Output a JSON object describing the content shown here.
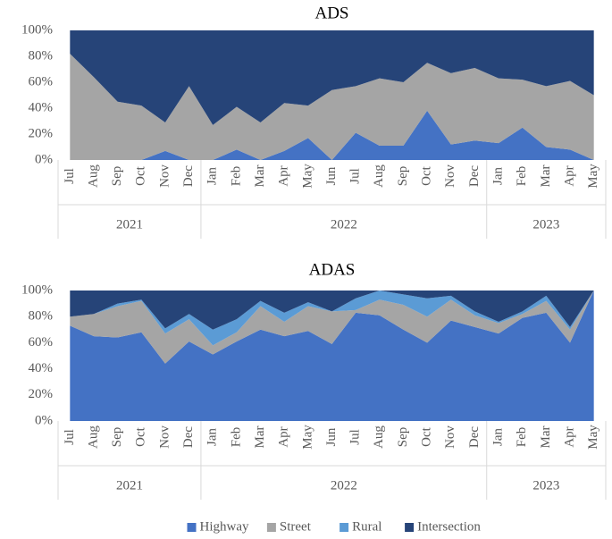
{
  "chart_data": [
    {
      "type": "stacked-area",
      "title": "ADS",
      "categories": [
        "Jul",
        "Aug",
        "Sep",
        "Oct",
        "Nov",
        "Dec",
        "Jan",
        "Feb",
        "Mar",
        "Apr",
        "May",
        "Jun",
        "Jul",
        "Aug",
        "Sep",
        "Oct",
        "Nov",
        "Dec",
        "Jan",
        "Feb",
        "Mar",
        "Apr",
        "May"
      ],
      "years": [
        "2021",
        "2021",
        "2021",
        "2021",
        "2021",
        "2021",
        "2022",
        "2022",
        "2022",
        "2022",
        "2022",
        "2022",
        "2022",
        "2022",
        "2022",
        "2022",
        "2022",
        "2022",
        "2023",
        "2023",
        "2023",
        "2023",
        "2023"
      ],
      "ylim": [
        0,
        100
      ],
      "yticks": [
        {
          "value": 0,
          "label": "0%"
        },
        {
          "value": 20,
          "label": "20%"
        },
        {
          "value": 40,
          "label": "40%"
        },
        {
          "value": 60,
          "label": "60%"
        },
        {
          "value": 80,
          "label": "80%"
        },
        {
          "value": 100,
          "label": "100%"
        }
      ],
      "series": [
        {
          "color": "#4472c4",
          "values": [
            0,
            0,
            0,
            0,
            7,
            0,
            0,
            8,
            0,
            7,
            17,
            0,
            21,
            11,
            11,
            38,
            12,
            15,
            13,
            25,
            10,
            8,
            0
          ]
        },
        {
          "color": "#a5a5a5",
          "values": [
            82,
            64,
            45,
            42,
            22,
            57,
            27,
            33,
            29,
            37,
            25,
            54,
            36,
            52,
            49,
            37,
            55,
            56,
            50,
            37,
            47,
            53,
            50
          ]
        },
        {
          "color": "#5b9bd5",
          "values": [
            0,
            0,
            0,
            0,
            0,
            0,
            0,
            0,
            0,
            0,
            0,
            0,
            0,
            0,
            0,
            0,
            0,
            0,
            0,
            0,
            0,
            0,
            0
          ]
        },
        {
          "color": "#264478",
          "values": [
            18,
            36,
            55,
            58,
            71,
            43,
            73,
            59,
            71,
            56,
            58,
            46,
            43,
            37,
            40,
            25,
            33,
            29,
            37,
            38,
            43,
            39,
            50
          ]
        }
      ]
    },
    {
      "type": "stacked-area",
      "title": "ADAS",
      "categories": [
        "Jul",
        "Aug",
        "Sep",
        "Oct",
        "Nov",
        "Dec",
        "Jan",
        "Feb",
        "Mar",
        "Apr",
        "May",
        "Jun",
        "Jul",
        "Aug",
        "Sep",
        "Oct",
        "Nov",
        "Dec",
        "Jan",
        "Feb",
        "Mar",
        "Apr",
        "May"
      ],
      "years": [
        "2021",
        "2021",
        "2021",
        "2021",
        "2021",
        "2021",
        "2022",
        "2022",
        "2022",
        "2022",
        "2022",
        "2022",
        "2022",
        "2022",
        "2022",
        "2022",
        "2022",
        "2022",
        "2023",
        "2023",
        "2023",
        "2023",
        "2023"
      ],
      "ylim": [
        0,
        100
      ],
      "yticks": [
        {
          "value": 0,
          "label": "0%"
        },
        {
          "value": 20,
          "label": "20%"
        },
        {
          "value": 40,
          "label": "40%"
        },
        {
          "value": 60,
          "label": "60%"
        },
        {
          "value": 80,
          "label": "80%"
        },
        {
          "value": 100,
          "label": "100%"
        }
      ],
      "legend": "bottom",
      "series": [
        {
          "name": "Highway",
          "color": "#4472c4",
          "values": [
            73,
            65,
            64,
            68,
            44,
            61,
            51,
            61,
            70,
            65,
            69,
            59,
            83,
            81,
            70,
            60,
            77,
            72,
            67,
            79,
            83,
            60,
            100
          ]
        },
        {
          "name": "Street",
          "color": "#a5a5a5",
          "values": [
            7,
            17,
            24,
            24,
            23,
            17,
            7,
            7,
            18,
            11,
            19,
            25,
            2,
            12,
            19,
            20,
            16,
            9,
            8,
            3,
            9,
            10,
            0
          ]
        },
        {
          "name": "Rural",
          "color": "#5b9bd5",
          "values": [
            0,
            0,
            2,
            1,
            4,
            4,
            12,
            10,
            4,
            7,
            3,
            0,
            9,
            7,
            8,
            14,
            3,
            3,
            1,
            2,
            4,
            2,
            0
          ]
        },
        {
          "name": "Intersection",
          "color": "#264478",
          "values": [
            20,
            18,
            10,
            7,
            29,
            18,
            30,
            22,
            8,
            17,
            9,
            16,
            6,
            0,
            3,
            6,
            4,
            16,
            24,
            16,
            4,
            28,
            0
          ]
        }
      ]
    }
  ]
}
